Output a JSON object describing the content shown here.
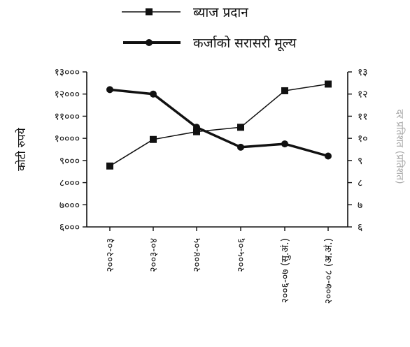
{
  "chart_data": {
    "type": "line",
    "categories": [
      "२००२-०३",
      "२००३-०४",
      "२००४-०५",
      "२००५-०६",
      "२००६-०७ (सु.अं.)",
      "२००७-०८ (अ.अं.)"
    ],
    "ylabel": "कोटी रुपये",
    "y2label": "दर प्रतिशत (प्रतिशत)",
    "ylim": [
      6000,
      13000
    ],
    "y2lim": [
      6,
      13
    ],
    "yticks": [
      {
        "value": 6000,
        "label": "६०००"
      },
      {
        "value": 7000,
        "label": "७०००"
      },
      {
        "value": 8000,
        "label": "८०००"
      },
      {
        "value": 9000,
        "label": "९०००"
      },
      {
        "value": 10000,
        "label": "१००००"
      },
      {
        "value": 11000,
        "label": "११०००"
      },
      {
        "value": 12000,
        "label": "१२०००"
      },
      {
        "value": 13000,
        "label": "१३०००"
      }
    ],
    "y2ticks": [
      {
        "value": 6,
        "label": "६"
      },
      {
        "value": 7,
        "label": "७"
      },
      {
        "value": 8,
        "label": "८"
      },
      {
        "value": 9,
        "label": "९"
      },
      {
        "value": 10,
        "label": "१०"
      },
      {
        "value": 11,
        "label": "११"
      },
      {
        "value": 12,
        "label": "१२"
      },
      {
        "value": 13,
        "label": "१३"
      }
    ],
    "series": [
      {
        "name": "ब्याज प्रदान",
        "axis": "left",
        "marker": "square",
        "line": "thin",
        "values": [
          8750,
          9950,
          10300,
          10500,
          12150,
          12450
        ]
      },
      {
        "name": "कर्जाको सरासरी मूल्य",
        "axis": "right",
        "marker": "circle",
        "line": "thick",
        "values": [
          12.2,
          12.0,
          10.5,
          9.6,
          9.75,
          9.2
        ]
      }
    ],
    "legend_position": "top",
    "grid": false
  }
}
